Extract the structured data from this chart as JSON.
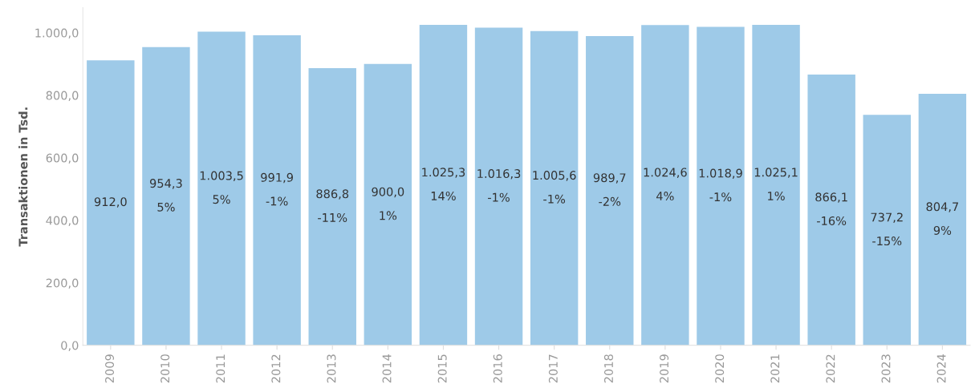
{
  "chart_data": {
    "type": "bar",
    "ylabel": "Transaktionen in Tsd.",
    "categories": [
      "2009",
      "2010",
      "2011",
      "2012",
      "2013",
      "2014",
      "2015",
      "2016",
      "2017",
      "2018",
      "2019",
      "2020",
      "2021",
      "2022",
      "2023",
      "2024"
    ],
    "values": [
      912.0,
      954.3,
      1003.5,
      991.9,
      886.8,
      900.0,
      1025.3,
      1016.3,
      1005.6,
      989.7,
      1024.6,
      1018.9,
      1025.1,
      866.1,
      737.2,
      804.7
    ],
    "value_labels": [
      "912,0",
      "954,3\n5%",
      "1.003,5\n5%",
      "991,9\n-1%",
      "886,8\n-11%",
      "900,0\n1%",
      "1.025,3\n14%",
      "1.016,3\n-1%",
      "1.005,6\n-1%",
      "989,7\n-2%",
      "1.024,6\n4%",
      "1.018,9\n-1%",
      "1.025,1\n1%",
      "866,1\n-16%",
      "737,2\n-15%",
      "804,7\n9%"
    ],
    "color": "#9ecae8",
    "ylim": [
      0,
      1080
    ],
    "yticks": [
      {
        "value": 0,
        "label": "0,0"
      },
      {
        "value": 200,
        "label": "200,0"
      },
      {
        "value": 400,
        "label": "400,0"
      },
      {
        "value": 600,
        "label": "600,0"
      },
      {
        "value": 800,
        "label": "800,0"
      },
      {
        "value": 1000,
        "label": "1.000,0"
      }
    ],
    "grid": false,
    "legend": false
  }
}
